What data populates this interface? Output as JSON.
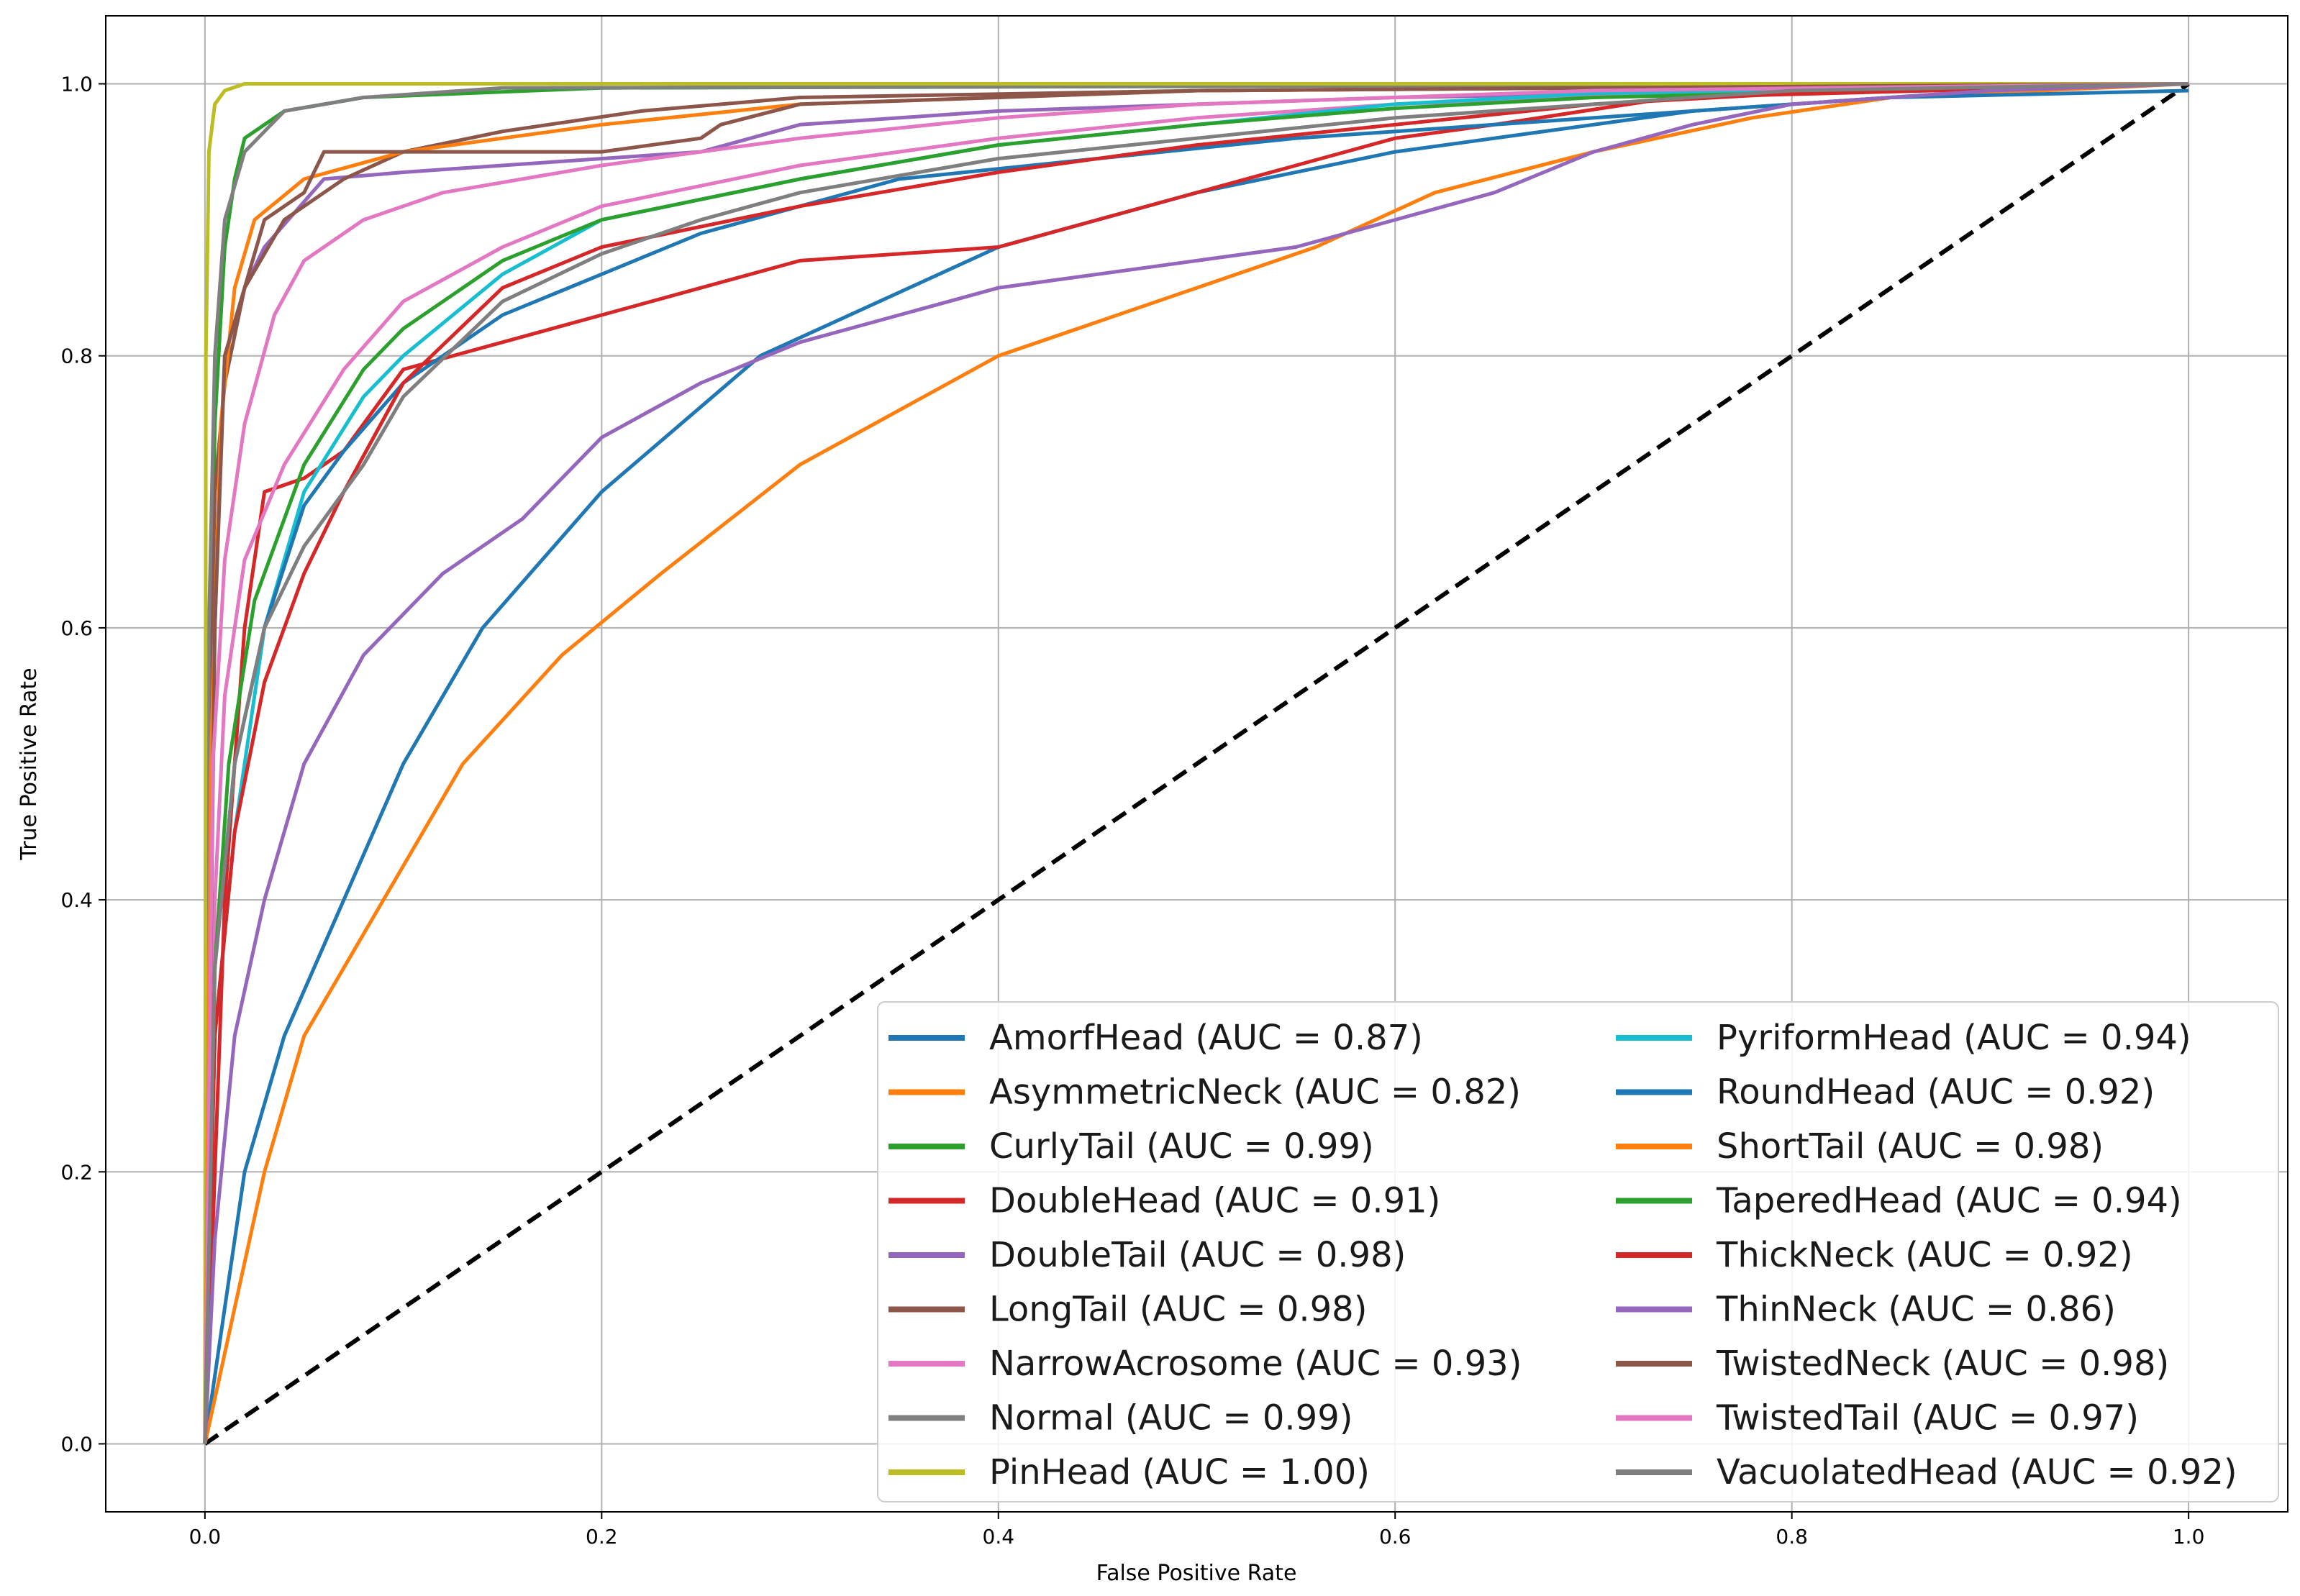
{
  "chart_data": {
    "type": "line",
    "title": "",
    "xlabel": "False Positive Rate",
    "ylabel": "True Positive Rate",
    "xlim": [
      -0.05,
      1.05
    ],
    "ylim": [
      -0.05,
      1.05
    ],
    "xticks": [
      "0.0",
      "0.2",
      "0.4",
      "0.6",
      "0.8",
      "1.0"
    ],
    "yticks": [
      "0.0",
      "0.2",
      "0.4",
      "0.6",
      "0.8",
      "1.0"
    ],
    "grid": true,
    "legend_position": "lower-right",
    "legend_columns": 2,
    "reference_line": {
      "style": "dashed",
      "color": "#000000",
      "points": [
        [
          0,
          0
        ],
        [
          1,
          1
        ]
      ]
    },
    "series": [
      {
        "name": "AmorfHead (AUC = 0.87)",
        "color": "#1f77b4",
        "auc": 0.87,
        "points": [
          [
            0,
            0
          ],
          [
            0.01,
            0.1
          ],
          [
            0.02,
            0.2
          ],
          [
            0.04,
            0.3
          ],
          [
            0.07,
            0.4
          ],
          [
            0.1,
            0.5
          ],
          [
            0.14,
            0.6
          ],
          [
            0.2,
            0.7
          ],
          [
            0.28,
            0.8
          ],
          [
            0.4,
            0.88
          ],
          [
            0.5,
            0.92
          ],
          [
            0.6,
            0.95
          ],
          [
            0.75,
            0.98
          ],
          [
            0.9,
            0.995
          ],
          [
            1,
            1
          ]
        ]
      },
      {
        "name": "AsymmetricNeck (AUC = 0.82)",
        "color": "#ff7f0e",
        "auc": 0.82,
        "points": [
          [
            0,
            0
          ],
          [
            0.015,
            0.1
          ],
          [
            0.03,
            0.2
          ],
          [
            0.05,
            0.3
          ],
          [
            0.09,
            0.4
          ],
          [
            0.13,
            0.5
          ],
          [
            0.18,
            0.58
          ],
          [
            0.23,
            0.64
          ],
          [
            0.3,
            0.72
          ],
          [
            0.4,
            0.8
          ],
          [
            0.5,
            0.85
          ],
          [
            0.56,
            0.88
          ],
          [
            0.62,
            0.92
          ],
          [
            0.7,
            0.95
          ],
          [
            0.78,
            0.975
          ],
          [
            0.85,
            0.99
          ],
          [
            1,
            1
          ]
        ]
      },
      {
        "name": "CurlyTail (AUC = 0.99)",
        "color": "#2ca02c",
        "auc": 0.99,
        "points": [
          [
            0,
            0
          ],
          [
            0.002,
            0.5
          ],
          [
            0.005,
            0.75
          ],
          [
            0.01,
            0.88
          ],
          [
            0.015,
            0.93
          ],
          [
            0.02,
            0.96
          ],
          [
            0.04,
            0.98
          ],
          [
            0.08,
            0.99
          ],
          [
            0.2,
            0.997
          ],
          [
            1,
            1
          ]
        ]
      },
      {
        "name": "DoubleHead (AUC = 0.91)",
        "color": "#d62728",
        "auc": 0.91,
        "points": [
          [
            0,
            0
          ],
          [
            0.01,
            0.4
          ],
          [
            0.02,
            0.6
          ],
          [
            0.03,
            0.7
          ],
          [
            0.05,
            0.71
          ],
          [
            0.07,
            0.73
          ],
          [
            0.1,
            0.79
          ],
          [
            0.15,
            0.81
          ],
          [
            0.2,
            0.83
          ],
          [
            0.25,
            0.85
          ],
          [
            0.3,
            0.87
          ],
          [
            0.4,
            0.88
          ],
          [
            0.45,
            0.9
          ],
          [
            0.5,
            0.92
          ],
          [
            0.55,
            0.94
          ],
          [
            0.6,
            0.96
          ],
          [
            0.65,
            0.97
          ],
          [
            0.74,
            0.99
          ],
          [
            1,
            1
          ]
        ]
      },
      {
        "name": "DoubleTail (AUC = 0.98)",
        "color": "#9467bd",
        "auc": 0.98,
        "points": [
          [
            0,
            0
          ],
          [
            0.003,
            0.5
          ],
          [
            0.007,
            0.7
          ],
          [
            0.01,
            0.8
          ],
          [
            0.02,
            0.85
          ],
          [
            0.03,
            0.88
          ],
          [
            0.06,
            0.93
          ],
          [
            0.1,
            0.935
          ],
          [
            0.15,
            0.94
          ],
          [
            0.25,
            0.95
          ],
          [
            0.3,
            0.97
          ],
          [
            0.4,
            0.98
          ],
          [
            0.6,
            0.99
          ],
          [
            1,
            1
          ]
        ]
      },
      {
        "name": "LongTail (AUC = 0.98)",
        "color": "#8c564b",
        "auc": 0.98,
        "points": [
          [
            0,
            0
          ],
          [
            0.002,
            0.5
          ],
          [
            0.005,
            0.7
          ],
          [
            0.01,
            0.78
          ],
          [
            0.02,
            0.85
          ],
          [
            0.04,
            0.9
          ],
          [
            0.07,
            0.93
          ],
          [
            0.1,
            0.95
          ],
          [
            0.15,
            0.965
          ],
          [
            0.22,
            0.98
          ],
          [
            0.3,
            0.99
          ],
          [
            0.5,
            0.995
          ],
          [
            1,
            1
          ]
        ]
      },
      {
        "name": "NarrowAcrosome (AUC = 0.93)",
        "color": "#e377c2",
        "auc": 0.93,
        "points": [
          [
            0,
            0
          ],
          [
            0.005,
            0.4
          ],
          [
            0.01,
            0.55
          ],
          [
            0.02,
            0.65
          ],
          [
            0.04,
            0.72
          ],
          [
            0.07,
            0.79
          ],
          [
            0.1,
            0.84
          ],
          [
            0.15,
            0.88
          ],
          [
            0.2,
            0.91
          ],
          [
            0.3,
            0.94
          ],
          [
            0.4,
            0.96
          ],
          [
            0.5,
            0.975
          ],
          [
            0.6,
            0.985
          ],
          [
            0.8,
            0.997
          ],
          [
            1,
            1
          ]
        ]
      },
      {
        "name": "Normal (AUC = 0.99)",
        "color": "#7f7f7f",
        "auc": 0.99,
        "points": [
          [
            0,
            0
          ],
          [
            0.002,
            0.6
          ],
          [
            0.005,
            0.8
          ],
          [
            0.01,
            0.9
          ],
          [
            0.02,
            0.95
          ],
          [
            0.04,
            0.98
          ],
          [
            0.08,
            0.99
          ],
          [
            0.15,
            0.997
          ],
          [
            1,
            1
          ]
        ]
      },
      {
        "name": "PinHead (AUC = 1.00)",
        "color": "#bcbd22",
        "auc": 1.0,
        "points": [
          [
            0,
            0
          ],
          [
            0.0005,
            0.8
          ],
          [
            0.002,
            0.95
          ],
          [
            0.005,
            0.985
          ],
          [
            0.01,
            0.995
          ],
          [
            0.02,
            1
          ],
          [
            1,
            1
          ]
        ]
      },
      {
        "name": "PyriformHead (AUC = 0.94)",
        "color": "#17becf",
        "auc": 0.94,
        "points": [
          [
            0,
            0
          ],
          [
            0.005,
            0.3
          ],
          [
            0.015,
            0.45
          ],
          [
            0.03,
            0.6
          ],
          [
            0.05,
            0.7
          ],
          [
            0.08,
            0.77
          ],
          [
            0.1,
            0.8
          ],
          [
            0.15,
            0.86
          ],
          [
            0.2,
            0.9
          ],
          [
            0.3,
            0.93
          ],
          [
            0.4,
            0.955
          ],
          [
            0.5,
            0.97
          ],
          [
            0.6,
            0.985
          ],
          [
            0.7,
            0.993
          ],
          [
            1,
            1
          ]
        ]
      },
      {
        "name": "RoundHead (AUC = 0.92)",
        "color": "#1f77b4",
        "auc": 0.92,
        "points": [
          [
            0,
            0
          ],
          [
            0.005,
            0.35
          ],
          [
            0.015,
            0.5
          ],
          [
            0.03,
            0.6
          ],
          [
            0.05,
            0.69
          ],
          [
            0.07,
            0.73
          ],
          [
            0.1,
            0.78
          ],
          [
            0.15,
            0.83
          ],
          [
            0.2,
            0.86
          ],
          [
            0.25,
            0.89
          ],
          [
            0.3,
            0.91
          ],
          [
            0.35,
            0.93
          ],
          [
            0.45,
            0.945
          ],
          [
            0.55,
            0.96
          ],
          [
            0.65,
            0.97
          ],
          [
            0.75,
            0.98
          ],
          [
            0.85,
            0.99
          ],
          [
            1,
            0.995
          ]
        ]
      },
      {
        "name": "ShortTail (AUC = 0.98)",
        "color": "#ff7f0e",
        "auc": 0.98,
        "points": [
          [
            0,
            0
          ],
          [
            0.003,
            0.5
          ],
          [
            0.008,
            0.75
          ],
          [
            0.015,
            0.85
          ],
          [
            0.025,
            0.9
          ],
          [
            0.05,
            0.93
          ],
          [
            0.1,
            0.95
          ],
          [
            0.15,
            0.96
          ],
          [
            0.2,
            0.97
          ],
          [
            0.3,
            0.985
          ],
          [
            0.5,
            0.995
          ],
          [
            1,
            1
          ]
        ]
      },
      {
        "name": "TaperedHead (AUC = 0.94)",
        "color": "#2ca02c",
        "auc": 0.94,
        "points": [
          [
            0,
            0
          ],
          [
            0.005,
            0.35
          ],
          [
            0.012,
            0.5
          ],
          [
            0.025,
            0.62
          ],
          [
            0.05,
            0.72
          ],
          [
            0.08,
            0.79
          ],
          [
            0.1,
            0.82
          ],
          [
            0.15,
            0.87
          ],
          [
            0.2,
            0.9
          ],
          [
            0.3,
            0.93
          ],
          [
            0.4,
            0.955
          ],
          [
            0.5,
            0.97
          ],
          [
            0.6,
            0.982
          ],
          [
            0.7,
            0.99
          ],
          [
            1,
            1
          ]
        ]
      },
      {
        "name": "ThickNeck (AUC = 0.92)",
        "color": "#d62728",
        "auc": 0.92,
        "points": [
          [
            0,
            0
          ],
          [
            0.005,
            0.3
          ],
          [
            0.015,
            0.45
          ],
          [
            0.03,
            0.56
          ],
          [
            0.05,
            0.64
          ],
          [
            0.07,
            0.7
          ],
          [
            0.1,
            0.78
          ],
          [
            0.15,
            0.85
          ],
          [
            0.2,
            0.88
          ],
          [
            0.3,
            0.91
          ],
          [
            0.4,
            0.935
          ],
          [
            0.5,
            0.955
          ],
          [
            0.6,
            0.97
          ],
          [
            0.7,
            0.985
          ],
          [
            0.8,
            0.993
          ],
          [
            1,
            1
          ]
        ]
      },
      {
        "name": "ThinNeck (AUC = 0.86)",
        "color": "#9467bd",
        "auc": 0.86,
        "points": [
          [
            0,
            0
          ],
          [
            0.005,
            0.15
          ],
          [
            0.015,
            0.3
          ],
          [
            0.03,
            0.4
          ],
          [
            0.05,
            0.5
          ],
          [
            0.08,
            0.58
          ],
          [
            0.12,
            0.64
          ],
          [
            0.16,
            0.68
          ],
          [
            0.2,
            0.74
          ],
          [
            0.25,
            0.78
          ],
          [
            0.3,
            0.81
          ],
          [
            0.35,
            0.83
          ],
          [
            0.4,
            0.85
          ],
          [
            0.45,
            0.86
          ],
          [
            0.5,
            0.87
          ],
          [
            0.55,
            0.88
          ],
          [
            0.6,
            0.9
          ],
          [
            0.65,
            0.92
          ],
          [
            0.7,
            0.95
          ],
          [
            0.75,
            0.97
          ],
          [
            0.8,
            0.985
          ],
          [
            0.9,
            0.995
          ],
          [
            1,
            1
          ]
        ]
      },
      {
        "name": "TwistedNeck (AUC = 0.98)",
        "color": "#8c564b",
        "auc": 0.98,
        "points": [
          [
            0,
            0
          ],
          [
            0.005,
            0.6
          ],
          [
            0.01,
            0.8
          ],
          [
            0.02,
            0.85
          ],
          [
            0.03,
            0.9
          ],
          [
            0.05,
            0.92
          ],
          [
            0.06,
            0.95
          ],
          [
            0.1,
            0.95
          ],
          [
            0.2,
            0.95
          ],
          [
            0.25,
            0.96
          ],
          [
            0.26,
            0.97
          ],
          [
            0.3,
            0.985
          ],
          [
            0.5,
            0.995
          ],
          [
            1,
            1
          ]
        ]
      },
      {
        "name": "TwistedTail (AUC = 0.97)",
        "color": "#e377c2",
        "auc": 0.97,
        "points": [
          [
            0,
            0
          ],
          [
            0.004,
            0.5
          ],
          [
            0.01,
            0.65
          ],
          [
            0.02,
            0.75
          ],
          [
            0.035,
            0.83
          ],
          [
            0.05,
            0.87
          ],
          [
            0.08,
            0.9
          ],
          [
            0.12,
            0.92
          ],
          [
            0.2,
            0.94
          ],
          [
            0.3,
            0.96
          ],
          [
            0.4,
            0.975
          ],
          [
            0.5,
            0.985
          ],
          [
            0.7,
            0.995
          ],
          [
            1,
            1
          ]
        ]
      },
      {
        "name": "VacuolatedHead (AUC = 0.92)",
        "color": "#7f7f7f",
        "auc": 0.92,
        "points": [
          [
            0,
            0
          ],
          [
            0.005,
            0.35
          ],
          [
            0.015,
            0.5
          ],
          [
            0.03,
            0.6
          ],
          [
            0.05,
            0.66
          ],
          [
            0.08,
            0.72
          ],
          [
            0.1,
            0.77
          ],
          [
            0.15,
            0.84
          ],
          [
            0.2,
            0.875
          ],
          [
            0.25,
            0.9
          ],
          [
            0.3,
            0.92
          ],
          [
            0.4,
            0.945
          ],
          [
            0.5,
            0.96
          ],
          [
            0.6,
            0.975
          ],
          [
            0.7,
            0.985
          ],
          [
            0.8,
            0.995
          ],
          [
            1,
            1
          ]
        ]
      }
    ]
  }
}
